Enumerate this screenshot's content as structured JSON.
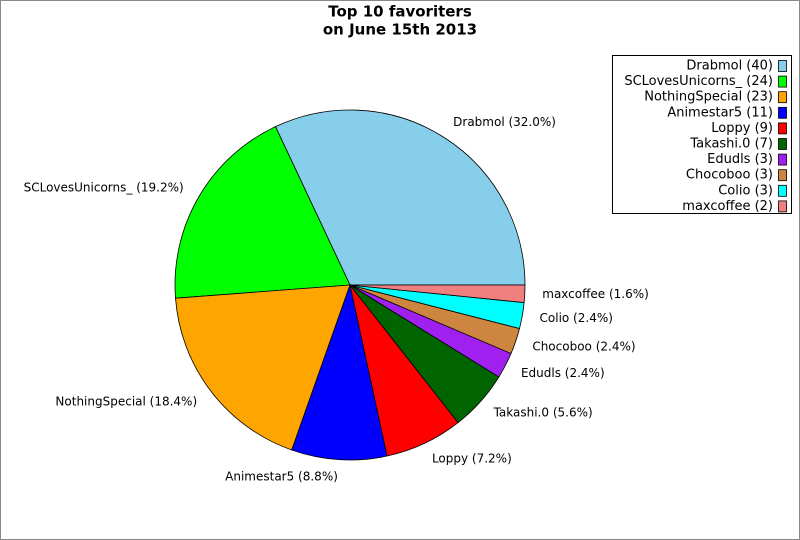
{
  "chart_data": {
    "type": "pie",
    "title": "Top 10 favoriters",
    "subtitle": "on June 15th 2013",
    "categories": [
      "Drabmol (40)",
      "SCLovesUnicorns_ (24)",
      "NothingSpecial (23)",
      "Animestar5 (11)",
      "Loppy (9)",
      "Takashi.0 (7)",
      "Edudls (3)",
      "Chocoboo (3)",
      "Colio (3)",
      "maxcoffee (2)"
    ],
    "values": [
      32.0,
      19.2,
      18.4,
      8.8,
      7.2,
      5.6,
      2.4,
      2.4,
      2.4,
      1.6
    ],
    "value_labels": [
      "Drabmol (32.0%)",
      "SCLovesUnicorns_ (19.2%)",
      "NothingSpecial (18.4%)",
      "Animestar5 (8.8%)",
      "Loppy (7.2%)",
      "Takashi.0 (5.6%)",
      "Edudls (2.4%)",
      "Chocoboo (2.4%)",
      "Colio (2.4%)",
      "maxcoffee (1.6%)"
    ],
    "colors": [
      "#87ceeb",
      "#00ff00",
      "#ffa500",
      "#0000ff",
      "#ff0000",
      "#006400",
      "#a020f0",
      "#cd853f",
      "#00ffff",
      "#f08080"
    ],
    "legend_position": "top-right"
  }
}
